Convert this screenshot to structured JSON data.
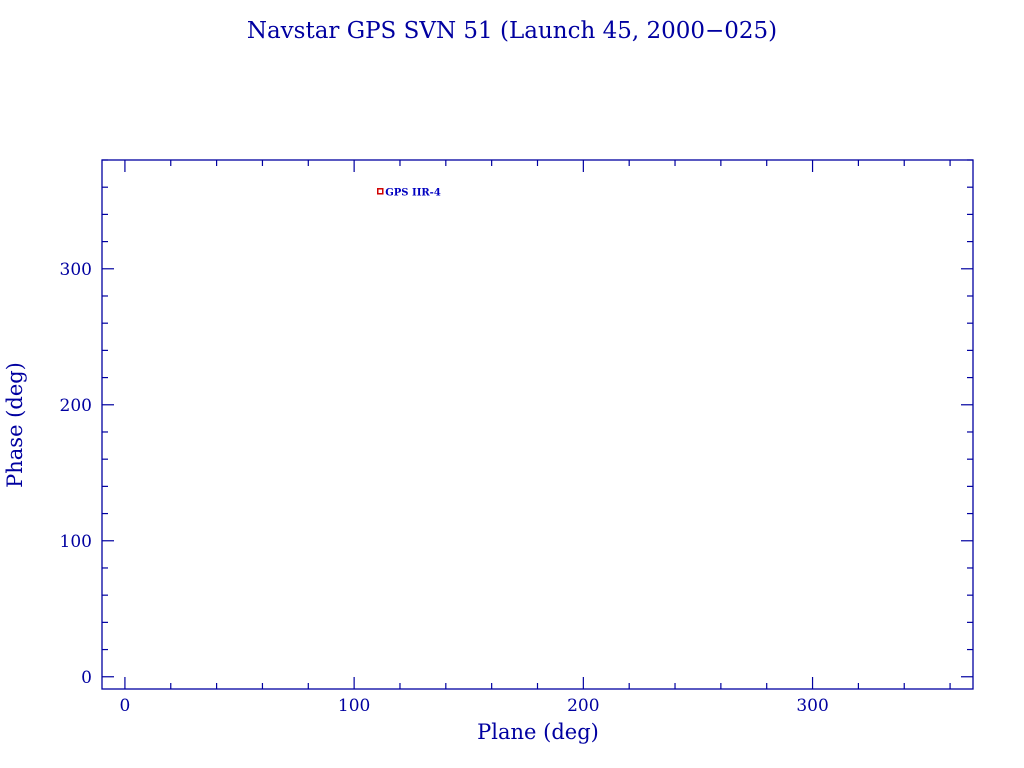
{
  "chart_data": {
    "type": "scatter",
    "title": "Navstar GPS SVN 51 (Launch 45, 2000−025)",
    "xlabel": "Plane (deg)",
    "ylabel": "Phase (deg)",
    "xlim": [
      -10,
      370
    ],
    "ylim": [
      -9,
      380
    ],
    "xticks": [
      0,
      100,
      200,
      300
    ],
    "yticks": [
      0,
      100,
      200,
      300
    ],
    "minor_tick_step": 20,
    "grid": false,
    "points": [
      {
        "label": "GPS IIR-4",
        "x": 111.4,
        "y": 357
      }
    ],
    "colors": {
      "axis": "#0000a0",
      "marker": "#d00000",
      "label": "#0000c0"
    }
  }
}
